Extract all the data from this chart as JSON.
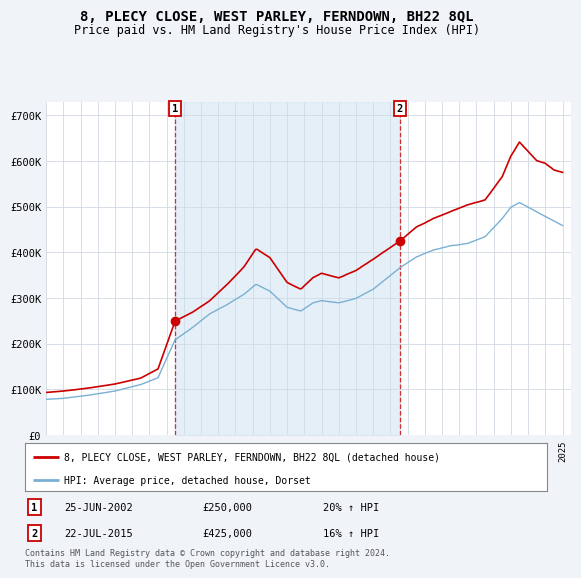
{
  "title": "8, PLECY CLOSE, WEST PARLEY, FERNDOWN, BH22 8QL",
  "subtitle": "Price paid vs. HM Land Registry's House Price Index (HPI)",
  "background_color": "#f0f4f8",
  "plot_bg_color": "#ffffff",
  "grid_color": "#d0d8e0",
  "property_color": "#cc0000",
  "hpi_color": "#7ab0d4",
  "fill_color": "#cce0f0",
  "legend_property": "8, PLECY CLOSE, WEST PARLEY, FERNDOWN, BH22 8QL (detached house)",
  "legend_hpi": "HPI: Average price, detached house, Dorset",
  "sale1_date": "25-JUN-2002",
  "sale1_price": "£250,000",
  "sale1_hpi": "20% ↑ HPI",
  "sale1_year": 2002.49,
  "sale1_value": 250000,
  "sale2_date": "22-JUL-2015",
  "sale2_price": "£425,000",
  "sale2_hpi": "16% ↑ HPI",
  "sale2_year": 2015.55,
  "sale2_value": 425000,
  "footer": "Contains HM Land Registry data © Crown copyright and database right 2024.\nThis data is licensed under the Open Government Licence v3.0.",
  "ylim": [
    0,
    730000
  ],
  "yticks": [
    0,
    100000,
    200000,
    300000,
    400000,
    500000,
    600000,
    700000
  ],
  "ytick_labels": [
    "£0",
    "£100K",
    "£200K",
    "£300K",
    "£400K",
    "£500K",
    "£600K",
    "£700K"
  ],
  "xlim_start": 1995.0,
  "xlim_end": 2025.5
}
